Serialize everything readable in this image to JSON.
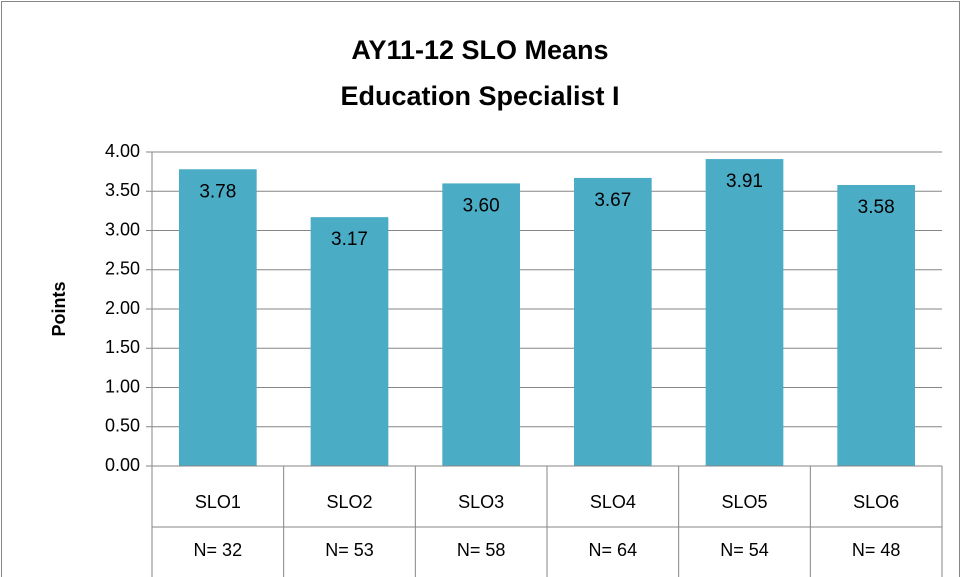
{
  "chart_data": {
    "type": "bar",
    "title": [
      "AY11-12 SLO Means",
      "Education Specialist I"
    ],
    "y_label": "Points",
    "categories": [
      "SLO1",
      "SLO2",
      "SLO3",
      "SLO4",
      "SLO5",
      "SLO6"
    ],
    "sub_categories": [
      "N= 32",
      "N= 53",
      "N= 58",
      "N= 64",
      "N= 54",
      "N= 48"
    ],
    "values": [
      3.78,
      3.17,
      3.6,
      3.67,
      3.91,
      3.58
    ],
    "value_labels": [
      "3.78",
      "3.17",
      "3.60",
      "3.67",
      "3.91",
      "3.58"
    ],
    "color": "#4bacc6",
    "ylim": [
      0,
      4
    ],
    "yticks": [
      {
        "value": 0,
        "label": "0.00"
      },
      {
        "value": 0.5,
        "label": "0.50"
      },
      {
        "value": 1,
        "label": "1.00"
      },
      {
        "value": 1.5,
        "label": "1.50"
      },
      {
        "value": 2,
        "label": "2.00"
      },
      {
        "value": 2.5,
        "label": "2.50"
      },
      {
        "value": 3,
        "label": "3.00"
      },
      {
        "value": 3.5,
        "label": "3.50"
      },
      {
        "value": 4,
        "label": "4.00"
      }
    ],
    "grid": true
  }
}
